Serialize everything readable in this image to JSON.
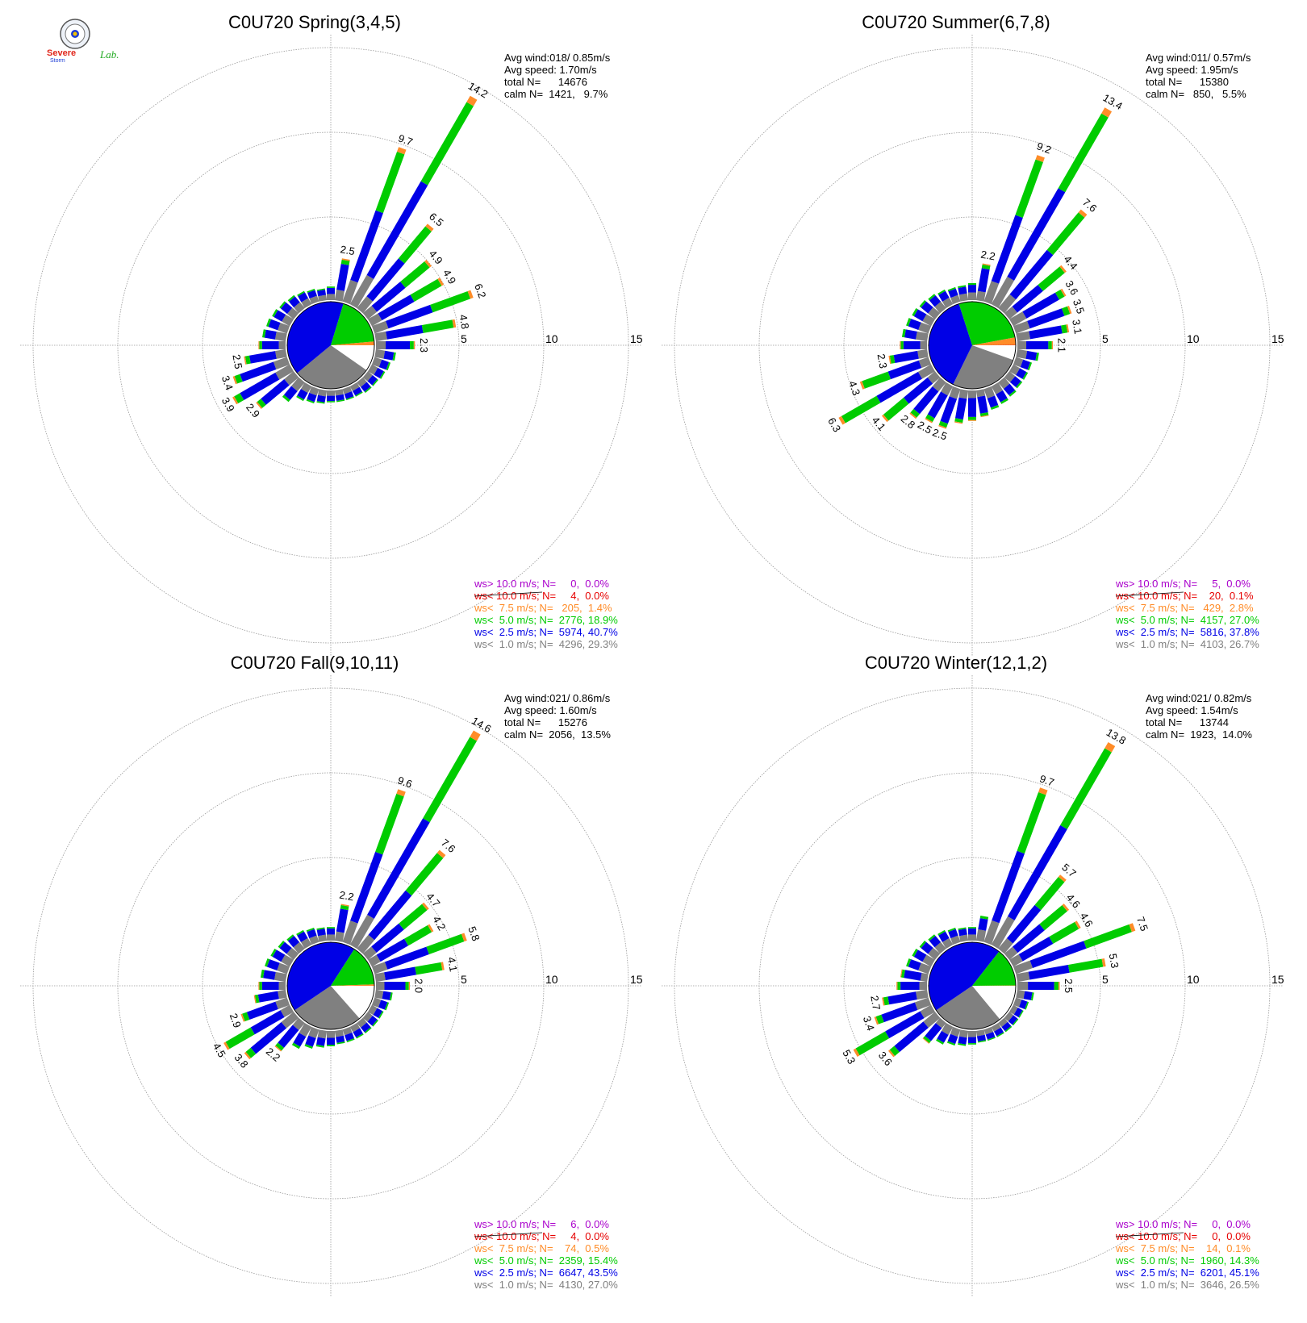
{
  "logo": {
    "text_top": "Severe",
    "text_bottom": "Storm",
    "text_lab": "Lab."
  },
  "colors": {
    "lt1": "#808080",
    "lt2_5": "#0000e6",
    "lt5": "#00cc00",
    "lt7_5": "#ff8c28",
    "lt10": "#e60000",
    "gt10": "#aa00cc",
    "grid": "#999999"
  },
  "chart_data": [
    {
      "type": "wind-rose",
      "title": "C0U720 Spring(3,4,5)",
      "rlim": [
        0,
        15
      ],
      "ring_labels": [
        "5",
        "10",
        "15"
      ],
      "stats": [
        "Avg wind:018/ 0.85m/s",
        "Avg speed: 1.70m/s",
        "total N=      14676",
        "calm N=  1421,   9.7%"
      ],
      "legend": [
        {
          "text": "ws> 10.0 m/s; N=     0,  0.0%",
          "color": "gt10"
        },
        {
          "text": "ws< 10.0 m/s; N=     4,  0.0%",
          "color": "lt10"
        },
        {
          "text": "ws<  7.5 m/s; N=   205,  1.4%",
          "color": "lt7_5"
        },
        {
          "text": "ws<  5.0 m/s; N=  2776, 18.9%",
          "color": "lt5"
        },
        {
          "text": "ws<  2.5 m/s; N=  5974, 40.7%",
          "color": "lt2_5"
        },
        {
          "text": "ws<  1.0 m/s; N=  4296, 29.3%",
          "color": "lt1"
        }
      ],
      "pie": [
        {
          "name": "calm",
          "value": 9.7
        },
        {
          "name": "lt1",
          "value": 29.3
        },
        {
          "name": "lt2_5",
          "value": 40.7
        },
        {
          "name": "lt5",
          "value": 18.9
        },
        {
          "name": "lt7_5",
          "value": 1.4
        },
        {
          "name": "lt10",
          "value": 0.0
        }
      ],
      "directions": [
        {
          "dir": 0,
          "total": 0.8
        },
        {
          "dir": 10,
          "total": 2.5,
          "label": "2.5"
        },
        {
          "dir": 20,
          "total": 9.7,
          "label": "9.7"
        },
        {
          "dir": 30,
          "total": 14.2,
          "label": "14.2"
        },
        {
          "dir": 40,
          "total": 6.5,
          "label": "6.5"
        },
        {
          "dir": 50,
          "total": 4.9,
          "label": "4.9"
        },
        {
          "dir": 60,
          "total": 4.9,
          "label": "4.9"
        },
        {
          "dir": 70,
          "total": 6.2,
          "label": "6.2"
        },
        {
          "dir": 80,
          "total": 4.8,
          "label": "4.8"
        },
        {
          "dir": 90,
          "total": 2.3,
          "label": "2.3"
        },
        {
          "dir": 100,
          "total": 1.2
        },
        {
          "dir": 110,
          "total": 1.0
        },
        {
          "dir": 120,
          "total": 0.9
        },
        {
          "dir": 130,
          "total": 0.8
        },
        {
          "dir": 140,
          "total": 0.8
        },
        {
          "dir": 150,
          "total": 0.7
        },
        {
          "dir": 160,
          "total": 0.7
        },
        {
          "dir": 170,
          "total": 0.7
        },
        {
          "dir": 180,
          "total": 0.7
        },
        {
          "dir": 190,
          "total": 0.8
        },
        {
          "dir": 200,
          "total": 0.9
        },
        {
          "dir": 210,
          "total": 1.0
        },
        {
          "dir": 220,
          "total": 1.5
        },
        {
          "dir": 230,
          "total": 2.9,
          "label": "2.9"
        },
        {
          "dir": 240,
          "total": 3.9,
          "label": "3.9"
        },
        {
          "dir": 250,
          "total": 3.4,
          "label": "3.4"
        },
        {
          "dir": 260,
          "total": 2.5,
          "label": "2.5"
        },
        {
          "dir": 270,
          "total": 1.6
        },
        {
          "dir": 280,
          "total": 1.4
        },
        {
          "dir": 290,
          "total": 1.3
        },
        {
          "dir": 300,
          "total": 1.2
        },
        {
          "dir": 310,
          "total": 1.1
        },
        {
          "dir": 320,
          "total": 1.0
        },
        {
          "dir": 330,
          "total": 0.9
        },
        {
          "dir": 340,
          "total": 0.8
        },
        {
          "dir": 350,
          "total": 0.7
        }
      ]
    },
    {
      "type": "wind-rose",
      "title": "C0U720 Summer(6,7,8)",
      "rlim": [
        0,
        15
      ],
      "ring_labels": [
        "5",
        "10",
        "15"
      ],
      "stats": [
        "Avg wind:011/ 0.57m/s",
        "Avg speed: 1.95m/s",
        "total N=      15380",
        "calm N=   850,   5.5%"
      ],
      "legend": [
        {
          "text": "ws> 10.0 m/s; N=     5,  0.0%",
          "color": "gt10"
        },
        {
          "text": "ws< 10.0 m/s; N=    20,  0.1%",
          "color": "lt10"
        },
        {
          "text": "ws<  7.5 m/s; N=   429,  2.8%",
          "color": "lt7_5"
        },
        {
          "text": "ws<  5.0 m/s; N=  4157, 27.0%",
          "color": "lt5"
        },
        {
          "text": "ws<  2.5 m/s; N=  5816, 37.8%",
          "color": "lt2_5"
        },
        {
          "text": "ws<  1.0 m/s; N=  4103, 26.7%",
          "color": "lt1"
        }
      ],
      "pie": [
        {
          "name": "calm",
          "value": 5.5
        },
        {
          "name": "lt1",
          "value": 26.7
        },
        {
          "name": "lt2_5",
          "value": 37.8
        },
        {
          "name": "lt5",
          "value": 27.0
        },
        {
          "name": "lt7_5",
          "value": 2.8
        },
        {
          "name": "lt10",
          "value": 0.1
        }
      ],
      "directions": [
        {
          "dir": 0,
          "total": 1.0
        },
        {
          "dir": 10,
          "total": 2.2,
          "label": "2.2"
        },
        {
          "dir": 20,
          "total": 9.2,
          "label": "9.2"
        },
        {
          "dir": 30,
          "total": 13.4,
          "label": "13.4"
        },
        {
          "dir": 40,
          "total": 7.6,
          "label": "7.6"
        },
        {
          "dir": 50,
          "total": 4.4,
          "label": "4.4"
        },
        {
          "dir": 60,
          "total": 3.6,
          "label": "3.6"
        },
        {
          "dir": 70,
          "total": 3.5,
          "label": "3.5"
        },
        {
          "dir": 80,
          "total": 3.1,
          "label": "3.1"
        },
        {
          "dir": 90,
          "total": 2.1,
          "label": "2.1"
        },
        {
          "dir": 100,
          "total": 1.3
        },
        {
          "dir": 110,
          "total": 1.0
        },
        {
          "dir": 120,
          "total": 1.0
        },
        {
          "dir": 130,
          "total": 1.0
        },
        {
          "dir": 140,
          "total": 1.1
        },
        {
          "dir": 150,
          "total": 1.2
        },
        {
          "dir": 160,
          "total": 1.3
        },
        {
          "dir": 170,
          "total": 1.6
        },
        {
          "dir": 180,
          "total": 1.8
        },
        {
          "dir": 190,
          "total": 2.0
        },
        {
          "dir": 200,
          "total": 2.5,
          "label": "2.5"
        },
        {
          "dir": 210,
          "total": 2.5,
          "label": "2.5"
        },
        {
          "dir": 220,
          "total": 2.8,
          "label": "2.8"
        },
        {
          "dir": 230,
          "total": 4.1,
          "label": "4.1"
        },
        {
          "dir": 240,
          "total": 6.3,
          "label": "6.3"
        },
        {
          "dir": 250,
          "total": 4.3,
          "label": "4.3"
        },
        {
          "dir": 260,
          "total": 2.3,
          "label": "2.3"
        },
        {
          "dir": 270,
          "total": 1.6
        },
        {
          "dir": 280,
          "total": 1.5
        },
        {
          "dir": 290,
          "total": 1.4
        },
        {
          "dir": 300,
          "total": 1.3
        },
        {
          "dir": 310,
          "total": 1.2
        },
        {
          "dir": 320,
          "total": 1.1
        },
        {
          "dir": 330,
          "total": 1.0
        },
        {
          "dir": 340,
          "total": 0.9
        },
        {
          "dir": 350,
          "total": 0.9
        }
      ]
    },
    {
      "type": "wind-rose",
      "title": "C0U720 Fall(9,10,11)",
      "rlim": [
        0,
        15
      ],
      "ring_labels": [
        "5",
        "10",
        "15"
      ],
      "stats": [
        "Avg wind:021/ 0.86m/s",
        "Avg speed: 1.60m/s",
        "total N=      15276",
        "calm N=  2056,  13.5%"
      ],
      "legend": [
        {
          "text": "ws> 10.0 m/s; N=     6,  0.0%",
          "color": "gt10"
        },
        {
          "text": "ws< 10.0 m/s; N=     4,  0.0%",
          "color": "lt10"
        },
        {
          "text": "ws<  7.5 m/s; N=    74,  0.5%",
          "color": "lt7_5"
        },
        {
          "text": "ws<  5.0 m/s; N=  2359, 15.4%",
          "color": "lt5"
        },
        {
          "text": "ws<  2.5 m/s; N=  6647, 43.5%",
          "color": "lt2_5"
        },
        {
          "text": "ws<  1.0 m/s; N=  4130, 27.0%",
          "color": "lt1"
        }
      ],
      "pie": [
        {
          "name": "calm",
          "value": 13.5
        },
        {
          "name": "lt1",
          "value": 27.0
        },
        {
          "name": "lt2_5",
          "value": 43.5
        },
        {
          "name": "lt5",
          "value": 15.4
        },
        {
          "name": "lt7_5",
          "value": 0.5
        },
        {
          "name": "lt10",
          "value": 0.0
        }
      ],
      "directions": [
        {
          "dir": 0,
          "total": 0.8
        },
        {
          "dir": 10,
          "total": 2.2,
          "label": "2.2"
        },
        {
          "dir": 20,
          "total": 9.6,
          "label": "9.6"
        },
        {
          "dir": 30,
          "total": 14.6,
          "label": "14.6"
        },
        {
          "dir": 40,
          "total": 7.6,
          "label": "7.6"
        },
        {
          "dir": 50,
          "total": 4.7,
          "label": "4.7"
        },
        {
          "dir": 60,
          "total": 4.2,
          "label": "4.2"
        },
        {
          "dir": 70,
          "total": 5.8,
          "label": "5.8"
        },
        {
          "dir": 80,
          "total": 4.1,
          "label": "4.1"
        },
        {
          "dir": 90,
          "total": 2.0,
          "label": "2.0"
        },
        {
          "dir": 100,
          "total": 1.0
        },
        {
          "dir": 110,
          "total": 0.9
        },
        {
          "dir": 120,
          "total": 0.8
        },
        {
          "dir": 130,
          "total": 0.8
        },
        {
          "dir": 140,
          "total": 0.8
        },
        {
          "dir": 150,
          "total": 0.8
        },
        {
          "dir": 160,
          "total": 0.8
        },
        {
          "dir": 170,
          "total": 0.8
        },
        {
          "dir": 180,
          "total": 0.9
        },
        {
          "dir": 190,
          "total": 1.0
        },
        {
          "dir": 200,
          "total": 1.2
        },
        {
          "dir": 210,
          "total": 1.5
        },
        {
          "dir": 220,
          "total": 2.2,
          "label": "2.2"
        },
        {
          "dir": 230,
          "total": 3.8,
          "label": "3.8"
        },
        {
          "dir": 240,
          "total": 4.5,
          "label": "4.5"
        },
        {
          "dir": 250,
          "total": 2.9,
          "label": "2.9"
        },
        {
          "dir": 260,
          "total": 1.9
        },
        {
          "dir": 270,
          "total": 1.6
        },
        {
          "dir": 280,
          "total": 1.5
        },
        {
          "dir": 290,
          "total": 1.4
        },
        {
          "dir": 300,
          "total": 1.3
        },
        {
          "dir": 310,
          "total": 1.2
        },
        {
          "dir": 320,
          "total": 1.1
        },
        {
          "dir": 330,
          "total": 1.0
        },
        {
          "dir": 340,
          "total": 0.9
        },
        {
          "dir": 350,
          "total": 0.8
        }
      ]
    },
    {
      "type": "wind-rose",
      "title": "C0U720 Winter(12,1,2)",
      "rlim": [
        0,
        15
      ],
      "ring_labels": [
        "5",
        "10",
        "15"
      ],
      "stats": [
        "Avg wind:021/ 0.82m/s",
        "Avg speed: 1.54m/s",
        "total N=      13744",
        "calm N=  1923,  14.0%"
      ],
      "legend": [
        {
          "text": "ws> 10.0 m/s; N=     0,  0.0%",
          "color": "gt10"
        },
        {
          "text": "ws< 10.0 m/s; N=     0,  0.0%",
          "color": "lt10"
        },
        {
          "text": "ws<  7.5 m/s; N=    14,  0.1%",
          "color": "lt7_5"
        },
        {
          "text": "ws<  5.0 m/s; N=  1960, 14.3%",
          "color": "lt5"
        },
        {
          "text": "ws<  2.5 m/s; N=  6201, 45.1%",
          "color": "lt2_5"
        },
        {
          "text": "ws<  1.0 m/s; N=  3646, 26.5%",
          "color": "lt1"
        }
      ],
      "pie": [
        {
          "name": "calm",
          "value": 14.0
        },
        {
          "name": "lt1",
          "value": 26.5
        },
        {
          "name": "lt2_5",
          "value": 45.1
        },
        {
          "name": "lt5",
          "value": 14.3
        },
        {
          "name": "lt7_5",
          "value": 0.1
        },
        {
          "name": "lt10",
          "value": 0.0
        }
      ],
      "directions": [
        {
          "dir": 0,
          "total": 0.8
        },
        {
          "dir": 10,
          "total": 1.5
        },
        {
          "dir": 20,
          "total": 9.7,
          "label": "9.7"
        },
        {
          "dir": 30,
          "total": 13.8,
          "label": "13.8"
        },
        {
          "dir": 40,
          "total": 5.7,
          "label": "5.7"
        },
        {
          "dir": 50,
          "total": 4.6,
          "label": "4.6"
        },
        {
          "dir": 60,
          "total": 4.6,
          "label": "4.6"
        },
        {
          "dir": 70,
          "total": 7.5,
          "label": "7.5"
        },
        {
          "dir": 80,
          "total": 5.3,
          "label": "5.3"
        },
        {
          "dir": 90,
          "total": 2.5,
          "label": "2.5"
        },
        {
          "dir": 100,
          "total": 1.0
        },
        {
          "dir": 110,
          "total": 0.8
        },
        {
          "dir": 120,
          "total": 0.7
        },
        {
          "dir": 130,
          "total": 0.7
        },
        {
          "dir": 140,
          "total": 0.7
        },
        {
          "dir": 150,
          "total": 0.7
        },
        {
          "dir": 160,
          "total": 0.7
        },
        {
          "dir": 170,
          "total": 0.7
        },
        {
          "dir": 180,
          "total": 0.8
        },
        {
          "dir": 190,
          "total": 0.9
        },
        {
          "dir": 200,
          "total": 1.0
        },
        {
          "dir": 210,
          "total": 1.2
        },
        {
          "dir": 220,
          "total": 1.6
        },
        {
          "dir": 230,
          "total": 3.6,
          "label": "3.6"
        },
        {
          "dir": 240,
          "total": 5.3,
          "label": "5.3"
        },
        {
          "dir": 250,
          "total": 3.4,
          "label": "3.4"
        },
        {
          "dir": 260,
          "total": 2.7,
          "label": "2.7"
        },
        {
          "dir": 270,
          "total": 1.8
        },
        {
          "dir": 280,
          "total": 1.6
        },
        {
          "dir": 290,
          "total": 1.4
        },
        {
          "dir": 300,
          "total": 1.3
        },
        {
          "dir": 310,
          "total": 1.2
        },
        {
          "dir": 320,
          "total": 1.1
        },
        {
          "dir": 330,
          "total": 1.0
        },
        {
          "dir": 340,
          "total": 0.9
        },
        {
          "dir": 350,
          "total": 0.8
        }
      ]
    }
  ]
}
